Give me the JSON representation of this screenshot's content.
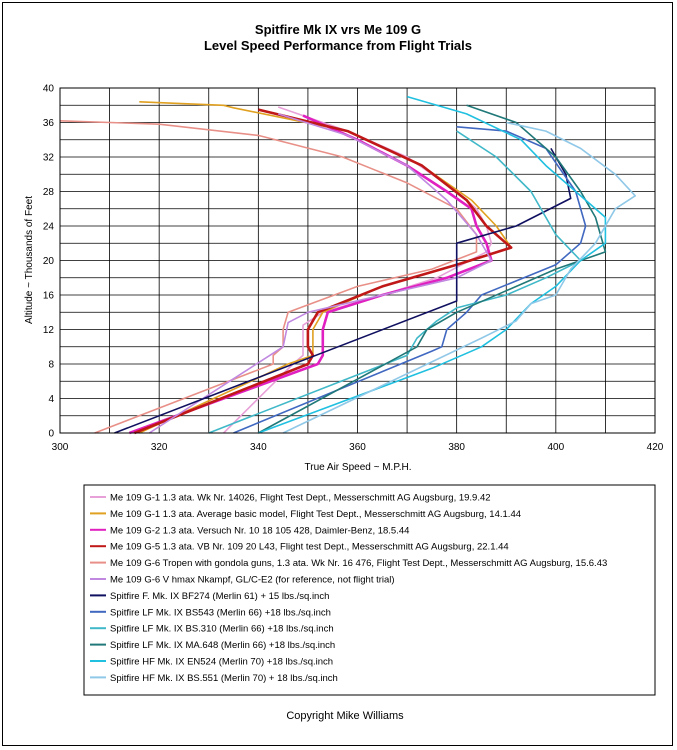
{
  "chart_data": {
    "type": "line",
    "title": "Spitfire Mk IX vrs Me 109 G",
    "subtitle": "Level Speed Performance from Flight Trials",
    "xlabel": "True Air Speed ~ M.P.H.",
    "ylabel": "Altitude ~ Thousands of Feet",
    "xlim": [
      300,
      420
    ],
    "ylim": [
      0,
      40
    ],
    "xticks": [
      "300",
      "320",
      "340",
      "360",
      "380",
      "400",
      "420"
    ],
    "yticks": [
      "0",
      "4",
      "8",
      "12",
      "16",
      "20",
      "24",
      "28",
      "32",
      "36",
      "40"
    ],
    "grid": true,
    "legend_position": "below",
    "credit": "Copyright Mike Williams",
    "series": [
      {
        "name": "Me 109 G-1 1.3 ata.  Wk Nr. 14026, Flight Test Dept., Messerschmitt AG Augsburg, 19.9.42",
        "color": "#e8a0d8",
        "points": [
          [
            333,
            0
          ],
          [
            347,
            8
          ],
          [
            349,
            9
          ],
          [
            349,
            12.5
          ],
          [
            353,
            14
          ],
          [
            365,
            16
          ],
          [
            376,
            18
          ],
          [
            386,
            21
          ],
          [
            387,
            22
          ],
          [
            386,
            24
          ],
          [
            384,
            26
          ],
          [
            380,
            28
          ],
          [
            370,
            32
          ],
          [
            358,
            35
          ],
          [
            344,
            37.8
          ]
        ]
      },
      {
        "name": "Me 109 G-1 1.3 ata.  Average basic model, Flight Test Dept., Messerschmitt AG Augsburg, 14.1.44",
        "color": "#e0a020",
        "points": [
          [
            316,
            0
          ],
          [
            346,
            8
          ],
          [
            351,
            9
          ],
          [
            351,
            12
          ],
          [
            353,
            14
          ],
          [
            365,
            17
          ],
          [
            380,
            19.5
          ],
          [
            391,
            21.5
          ],
          [
            388,
            24
          ],
          [
            383,
            27
          ],
          [
            373,
            31
          ],
          [
            358,
            35
          ],
          [
            335,
            37.7
          ],
          [
            333,
            38
          ],
          [
            316,
            38.4
          ]
        ]
      },
      {
        "name": "Me 109 G-2 1.3 ata.  Versuch Nr. 10 18 105 428, Daimler-Benz, 18.5.44",
        "color": "#e020c0",
        "points": [
          [
            314,
            0
          ],
          [
            352,
            8
          ],
          [
            353,
            9
          ],
          [
            353,
            12
          ],
          [
            354,
            14
          ],
          [
            365,
            16
          ],
          [
            378,
            18
          ],
          [
            387,
            20
          ],
          [
            386,
            22
          ],
          [
            384,
            24
          ],
          [
            383,
            26
          ],
          [
            378,
            28
          ],
          [
            370,
            31
          ],
          [
            360,
            34
          ],
          [
            349,
            36.8
          ]
        ]
      },
      {
        "name": "Me 109 G-5 1.3 ata.  VB Nr. 109 20 L43, Flight test Dept., Messerschmitt AG Augsburg, 22.1.44",
        "color": "#c01818",
        "points": [
          [
            315,
            0
          ],
          [
            350,
            8
          ],
          [
            351,
            9
          ],
          [
            350,
            10
          ],
          [
            350,
            12
          ],
          [
            352,
            14
          ],
          [
            365,
            17
          ],
          [
            380,
            19.5
          ],
          [
            391,
            21.5
          ],
          [
            386,
            24
          ],
          [
            382,
            27
          ],
          [
            373,
            31
          ],
          [
            358,
            35
          ],
          [
            340,
            37.5
          ]
        ]
      },
      {
        "name": "Me 109 G-6 Tropen with gondola guns, 1.3 ata. Wk Nr. 16 476, Flight Test Dept., Messerschmitt AG Augsburg, 15.6.43",
        "color": "#e89088",
        "points": [
          [
            307,
            0
          ],
          [
            343,
            8
          ],
          [
            343,
            9
          ],
          [
            345,
            10
          ],
          [
            345,
            12
          ],
          [
            346,
            14
          ],
          [
            360,
            17
          ],
          [
            375,
            19
          ],
          [
            384,
            21
          ],
          [
            384,
            23
          ],
          [
            380,
            26
          ],
          [
            370,
            29
          ],
          [
            357,
            32
          ],
          [
            340,
            34.5
          ],
          [
            320,
            35.8
          ],
          [
            300,
            36.2
          ]
        ]
      },
      {
        "name": "Me 109 G-6 V hmax Nkampf,  GL/C-E2  (for reference, not flight trial)",
        "color": "#c088e0",
        "points": [
          [
            318,
            0
          ],
          [
            345,
            10
          ],
          [
            346,
            12.8
          ],
          [
            350,
            14
          ],
          [
            365,
            16
          ],
          [
            380,
            18
          ],
          [
            387,
            20
          ],
          [
            384,
            23
          ],
          [
            378,
            27
          ],
          [
            370,
            31
          ],
          [
            358,
            34.5
          ],
          [
            344,
            37
          ]
        ]
      },
      {
        "name": "Spitfire F. Mk. IX BF274 (Merlin 61)  + 15 lbs./sq.inch",
        "color": "#101060",
        "points": [
          [
            311,
            0
          ],
          [
            380,
            15.3
          ],
          [
            380,
            22
          ],
          [
            392,
            24
          ],
          [
            403,
            27.2
          ],
          [
            402,
            30
          ],
          [
            399,
            33
          ]
        ]
      },
      {
        "name": "Spitfire LF Mk. IX BS543 (Merlin 66) +18 lbs./sq.inch",
        "color": "#4068c0",
        "points": [
          [
            335,
            0
          ],
          [
            375,
            9.5
          ],
          [
            377,
            10
          ],
          [
            378,
            12
          ],
          [
            382,
            14
          ],
          [
            385,
            16
          ],
          [
            400,
            19.5
          ],
          [
            405,
            22
          ],
          [
            406,
            24
          ],
          [
            404,
            28
          ],
          [
            398,
            33
          ],
          [
            390,
            35
          ],
          [
            380,
            35.5
          ]
        ]
      },
      {
        "name": "Spitfire LF Mk. IX BS.310 (Merlin 66) +18 lbs./sq.inch",
        "color": "#40b8c8",
        "points": [
          [
            330,
            0
          ],
          [
            370,
            9
          ],
          [
            372,
            11
          ],
          [
            376,
            13
          ],
          [
            380,
            14.5
          ],
          [
            390,
            16
          ],
          [
            398,
            18
          ],
          [
            405,
            20
          ],
          [
            400,
            23
          ],
          [
            395,
            28
          ],
          [
            388,
            32
          ],
          [
            380,
            35
          ]
        ]
      },
      {
        "name": "Spitfire LF Mk. IX MA.648 (Merlin 66) +18 lbs./sq.inch",
        "color": "#207878",
        "points": [
          [
            340,
            0
          ],
          [
            372,
            10
          ],
          [
            374,
            12
          ],
          [
            380,
            14
          ],
          [
            390,
            16.5
          ],
          [
            400,
            19
          ],
          [
            410,
            21
          ],
          [
            408,
            25
          ],
          [
            405,
            28
          ],
          [
            400,
            32
          ],
          [
            392,
            36
          ],
          [
            382,
            38
          ]
        ]
      },
      {
        "name": "Spitfire HF Mk. IX EN524 (Merlin 70) +18 lbs./sq.inch",
        "color": "#20c0e0",
        "points": [
          [
            340,
            0
          ],
          [
            375,
            7.5
          ],
          [
            385,
            10
          ],
          [
            390,
            12
          ],
          [
            395,
            15
          ],
          [
            400,
            17
          ],
          [
            405,
            20
          ],
          [
            410,
            22
          ],
          [
            410,
            25
          ],
          [
            404,
            28
          ],
          [
            398,
            31
          ],
          [
            393,
            34
          ],
          [
            382,
            37
          ],
          [
            370,
            39
          ]
        ]
      },
      {
        "name": "Spitfire HF Mk. IX  BS.551 (Merlin 70) + 18 lbs./sq.inch",
        "color": "#90c8e8",
        "points": [
          [
            345,
            0
          ],
          [
            385,
            11
          ],
          [
            392,
            13
          ],
          [
            395,
            15
          ],
          [
            400,
            16
          ],
          [
            403,
            19
          ],
          [
            408,
            22
          ],
          [
            412,
            26
          ],
          [
            416,
            27.5
          ],
          [
            412,
            30
          ],
          [
            405,
            33
          ],
          [
            398,
            35
          ],
          [
            390,
            36
          ]
        ]
      }
    ]
  }
}
